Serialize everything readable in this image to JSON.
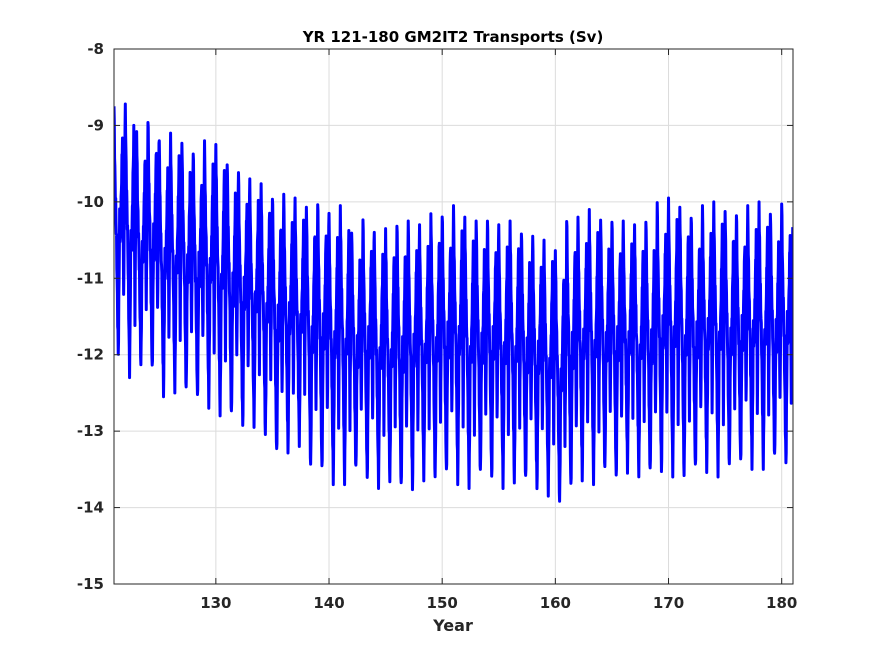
{
  "chart_data": {
    "type": "line",
    "title": "YR 121-180 GM2IT2 Transports (Sv)",
    "xlabel": "Year",
    "ylabel": "",
    "xlim": [
      121,
      181
    ],
    "ylim": [
      -15,
      -8
    ],
    "xticks": [
      130,
      140,
      150,
      160,
      170,
      180
    ],
    "yticks": [
      -8,
      -9,
      -10,
      -11,
      -12,
      -13,
      -14,
      -15
    ],
    "grid": true,
    "line_color": "#0000ff",
    "series": [
      {
        "x_start": 121,
        "step_years": 0.0833,
        "note_units": "Sv",
        "annual_max": [
          -8.75,
          -8.72,
          -9.05,
          -8.85,
          -9.2,
          -9.1,
          -9.15,
          -9.3,
          -9.2,
          -9.25,
          -9.4,
          -9.6,
          -9.7,
          -9.75,
          -9.85,
          -9.9,
          -9.95,
          -10.0,
          -9.95,
          -10.15,
          -10.05,
          -10.3,
          -10.2,
          -10.4,
          -10.35,
          -10.2,
          -10.25,
          -10.3,
          -10.1,
          -10.1,
          -10.05,
          -10.2,
          -10.15,
          -10.2,
          -10.3,
          -10.25,
          -10.3,
          -10.45,
          -10.5,
          -10.6,
          -10.15,
          -10.2,
          -10.1,
          -10.15,
          -10.2,
          -10.25,
          -10.3,
          -10.15,
          -10.0,
          -9.95,
          -10.05,
          -10.1,
          -10.05,
          -10.0,
          -10.05,
          -10.1,
          -10.05,
          -10.0,
          -10.05,
          -10.0
        ],
        "annual_min": [
          -12.05,
          -12.3,
          -12.2,
          -12.3,
          -12.55,
          -12.5,
          -12.55,
          -12.65,
          -12.7,
          -12.8,
          -12.9,
          -13.0,
          -12.95,
          -13.1,
          -13.4,
          -13.3,
          -13.2,
          -13.55,
          -13.6,
          -13.7,
          -13.7,
          -13.6,
          -13.7,
          -13.75,
          -13.7,
          -13.85,
          -13.8,
          -13.65,
          -13.7,
          -13.65,
          -13.7,
          -13.75,
          -13.65,
          -13.7,
          -13.75,
          -13.7,
          -13.75,
          -13.8,
          -13.85,
          -14.0,
          -13.85,
          -13.65,
          -13.7,
          -13.6,
          -13.7,
          -13.55,
          -13.6,
          -13.65,
          -13.6,
          -13.6,
          -13.65,
          -13.6,
          -13.55,
          -13.6,
          -13.55,
          -13.5,
          -13.5,
          -13.5,
          -13.45,
          -13.5
        ]
      }
    ]
  }
}
